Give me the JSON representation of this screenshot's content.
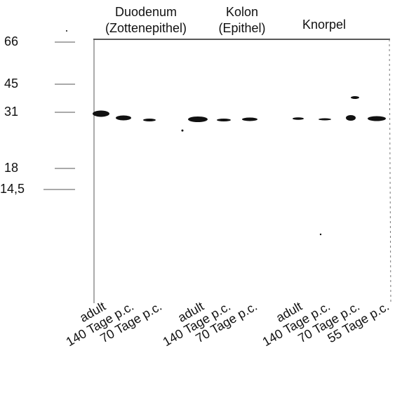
{
  "groups": [
    {
      "lines": [
        "Duodenum",
        "(Zottenepithel)"
      ]
    },
    {
      "lines": [
        "Kolon",
        "(Epithel)"
      ]
    },
    {
      "lines": [
        "Knorpel"
      ]
    }
  ],
  "markers": [
    "66",
    "45",
    "31",
    "18",
    "14,5"
  ],
  "lanes": [
    "adult",
    "140 Tage p.c.",
    "70 Tage p.c.",
    "adult",
    "140 Tage p.c.",
    "70 Tage p.c.",
    "adult",
    "140 Tage p.c.",
    "70 Tage p.c.",
    "55 Tage p.c."
  ]
}
